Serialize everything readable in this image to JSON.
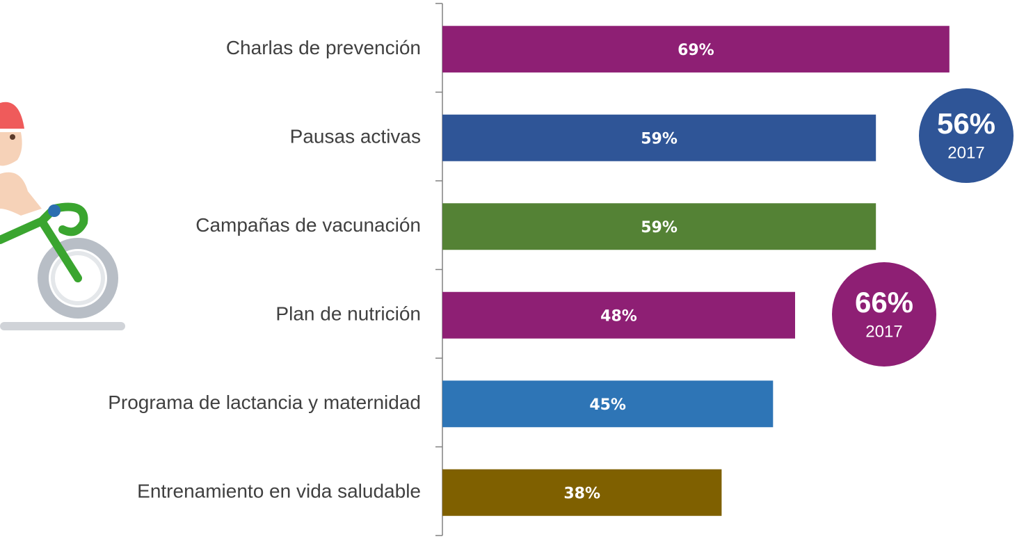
{
  "chart_data": {
    "type": "hbar",
    "categories": [
      "Charlas de prevención",
      "Pausas activas",
      "Campañas de vacunación",
      "Plan de nutrición",
      "Programa de lactancia y maternidad",
      "Entrenamiento en vida saludable"
    ],
    "values": [
      69,
      59,
      59,
      48,
      45,
      38
    ],
    "value_labels": [
      "69%",
      "59%",
      "59%",
      "48%",
      "45%",
      "38%"
    ],
    "colors": [
      "#8e1f74",
      "#2f5597",
      "#548235",
      "#8e1f74",
      "#2e75b6",
      "#7f6000"
    ],
    "xlim": [
      0,
      80
    ],
    "annotations": [
      {
        "text": "56%",
        "label": "2017",
        "color": "#2f5597"
      },
      {
        "text": "66%",
        "label": "2017",
        "color": "#8e1f74"
      }
    ]
  }
}
